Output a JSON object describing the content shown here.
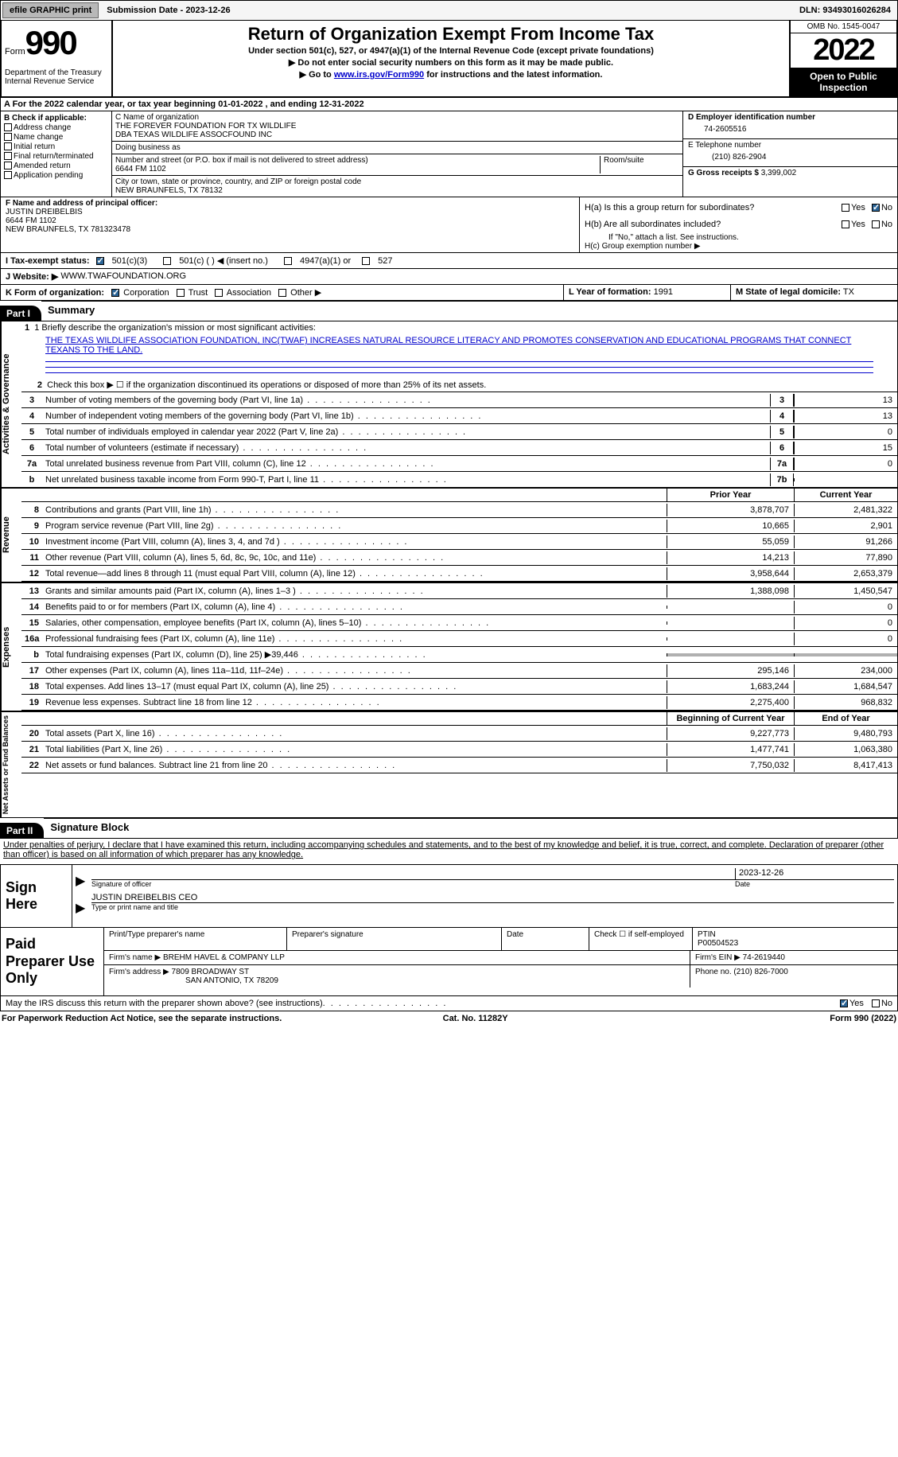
{
  "top": {
    "efile": "efile GRAPHIC print",
    "submission": "Submission Date - 2023-12-26",
    "dln": "DLN: 93493016026284"
  },
  "header": {
    "form": "Form",
    "number": "990",
    "dept": "Department of the Treasury Internal Revenue Service",
    "title": "Return of Organization Exempt From Income Tax",
    "sub1": "Under section 501(c), 527, or 4947(a)(1) of the Internal Revenue Code (except private foundations)",
    "sub2": "▶ Do not enter social security numbers on this form as it may be made public.",
    "sub3_pre": "▶ Go to ",
    "sub3_link": "www.irs.gov/Form990",
    "sub3_post": " for instructions and the latest information.",
    "omb": "OMB No. 1545-0047",
    "year": "2022",
    "open": "Open to Public Inspection"
  },
  "rowA": "A For the 2022 calendar year, or tax year beginning 01-01-2022    , and ending 12-31-2022",
  "B": {
    "label": "B Check if applicable:",
    "items": [
      "Address change",
      "Name change",
      "Initial return",
      "Final return/terminated",
      "Amended return",
      "Application pending"
    ]
  },
  "C": {
    "name_lbl": "C Name of organization",
    "name1": "THE FOREVER FOUNDATION FOR TX WILDLIFE",
    "name2": "DBA TEXAS WILDLIFE ASSOCFOUND INC",
    "dba_lbl": "Doing business as",
    "addr_lbl": "Number and street (or P.O. box if mail is not delivered to street address)",
    "room_lbl": "Room/suite",
    "addr": "6644 FM 1102",
    "city_lbl": "City or town, state or province, country, and ZIP or foreign postal code",
    "city": "NEW BRAUNFELS, TX  78132"
  },
  "D": {
    "ein_lbl": "D Employer identification number",
    "ein": "74-2605516",
    "tel_lbl": "E Telephone number",
    "tel": "(210) 826-2904",
    "gross_lbl": "G Gross receipts $",
    "gross": "3,399,002"
  },
  "F": {
    "lbl": "F Name and address of principal officer:",
    "name": "JUSTIN DREIBELBIS",
    "addr1": "6644 FM 1102",
    "addr2": "NEW BRAUNFELS, TX  781323478"
  },
  "H": {
    "a": "H(a)  Is this a group return for subordinates?",
    "b": "H(b)  Are all subordinates included?",
    "bnote": "If \"No,\" attach a list. See instructions.",
    "c": "H(c)  Group exemption number ▶",
    "yes": "Yes",
    "no": "No"
  },
  "I": {
    "lbl": "I   Tax-exempt status:",
    "o1": "501(c)(3)",
    "o2": "501(c) (  ) ◀ (insert no.)",
    "o3": "4947(a)(1) or",
    "o4": "527"
  },
  "J": {
    "lbl": "J   Website: ▶",
    "val": "WWW.TWAFOUNDATION.ORG"
  },
  "K": {
    "lbl": "K Form of organization:",
    "o1": "Corporation",
    "o2": "Trust",
    "o3": "Association",
    "o4": "Other ▶"
  },
  "L": {
    "lbl": "L Year of formation:",
    "val": "1991"
  },
  "M": {
    "lbl": "M State of legal domicile:",
    "val": "TX"
  },
  "parts": {
    "p1": "Part I",
    "p1_title": "Summary",
    "p2": "Part II",
    "p2_title": "Signature Block"
  },
  "summary": {
    "brief_lbl": "1   Briefly describe the organization's mission or most significant activities:",
    "mission": "THE TEXAS WILDLIFE ASSOCIATION FOUNDATION, INC(TWAF) INCREASES NATURAL RESOURCE LITERACY AND PROMOTES CONSERVATION AND EDUCATIONAL PROGRAMS THAT CONNECT TEXANS TO THE LAND.",
    "line2": "Check this box ▶ ☐  if the organization discontinued its operations or disposed of more than 25% of its net assets.",
    "tabs": {
      "act": "Activities & Governance",
      "rev": "Revenue",
      "exp": "Expenses",
      "net": "Net Assets or Fund Balances"
    },
    "rows_gov": [
      {
        "n": "3",
        "t": "Number of voting members of the governing body (Part VI, line 1a)",
        "box": "3",
        "v": "13"
      },
      {
        "n": "4",
        "t": "Number of independent voting members of the governing body (Part VI, line 1b)",
        "box": "4",
        "v": "13"
      },
      {
        "n": "5",
        "t": "Total number of individuals employed in calendar year 2022 (Part V, line 2a)",
        "box": "5",
        "v": "0"
      },
      {
        "n": "6",
        "t": "Total number of volunteers (estimate if necessary)",
        "box": "6",
        "v": "15"
      },
      {
        "n": "7a",
        "t": "Total unrelated business revenue from Part VIII, column (C), line 12",
        "box": "7a",
        "v": "0"
      },
      {
        "n": "b",
        "t": "Net unrelated business taxable income from Form 990-T, Part I, line 11",
        "box": "7b",
        "v": ""
      }
    ],
    "hdr_prior": "Prior Year",
    "hdr_curr": "Current Year",
    "rows_rev": [
      {
        "n": "8",
        "t": "Contributions and grants (Part VIII, line 1h)",
        "pv": "3,878,707",
        "cv": "2,481,322"
      },
      {
        "n": "9",
        "t": "Program service revenue (Part VIII, line 2g)",
        "pv": "10,665",
        "cv": "2,901"
      },
      {
        "n": "10",
        "t": "Investment income (Part VIII, column (A), lines 3, 4, and 7d )",
        "pv": "55,059",
        "cv": "91,266"
      },
      {
        "n": "11",
        "t": "Other revenue (Part VIII, column (A), lines 5, 6d, 8c, 9c, 10c, and 11e)",
        "pv": "14,213",
        "cv": "77,890"
      },
      {
        "n": "12",
        "t": "Total revenue—add lines 8 through 11 (must equal Part VIII, column (A), line 12)",
        "pv": "3,958,644",
        "cv": "2,653,379"
      }
    ],
    "rows_exp": [
      {
        "n": "13",
        "t": "Grants and similar amounts paid (Part IX, column (A), lines 1–3 )",
        "pv": "1,388,098",
        "cv": "1,450,547"
      },
      {
        "n": "14",
        "t": "Benefits paid to or for members (Part IX, column (A), line 4)",
        "pv": "",
        "cv": "0"
      },
      {
        "n": "15",
        "t": "Salaries, other compensation, employee benefits (Part IX, column (A), lines 5–10)",
        "pv": "",
        "cv": "0"
      },
      {
        "n": "16a",
        "t": "Professional fundraising fees (Part IX, column (A), line 11e)",
        "pv": "",
        "cv": "0"
      },
      {
        "n": "b",
        "t": "Total fundraising expenses (Part IX, column (D), line 25) ▶39,446",
        "pv": "gray",
        "cv": "gray"
      },
      {
        "n": "17",
        "t": "Other expenses (Part IX, column (A), lines 11a–11d, 11f–24e)",
        "pv": "295,146",
        "cv": "234,000"
      },
      {
        "n": "18",
        "t": "Total expenses. Add lines 13–17 (must equal Part IX, column (A), line 25)",
        "pv": "1,683,244",
        "cv": "1,684,547"
      },
      {
        "n": "19",
        "t": "Revenue less expenses. Subtract line 18 from line 12",
        "pv": "2,275,400",
        "cv": "968,832"
      }
    ],
    "hdr_beg": "Beginning of Current Year",
    "hdr_end": "End of Year",
    "rows_net": [
      {
        "n": "20",
        "t": "Total assets (Part X, line 16)",
        "pv": "9,227,773",
        "cv": "9,480,793"
      },
      {
        "n": "21",
        "t": "Total liabilities (Part X, line 26)",
        "pv": "1,477,741",
        "cv": "1,063,380"
      },
      {
        "n": "22",
        "t": "Net assets or fund balances. Subtract line 21 from line 20",
        "pv": "7,750,032",
        "cv": "8,417,413"
      }
    ]
  },
  "declare": "Under penalties of perjury, I declare that I have examined this return, including accompanying schedules and statements, and to the best of my knowledge and belief, it is true, correct, and complete. Declaration of preparer (other than officer) is based on all information of which preparer has any knowledge.",
  "sign": {
    "here": "Sign Here",
    "sig_lbl": "Signature of officer",
    "date_lbl": "Date",
    "date": "2023-12-26",
    "name": "JUSTIN DREIBELBIS CEO",
    "type_lbl": "Type or print name and title"
  },
  "prep": {
    "lbl": "Paid Preparer Use Only",
    "r1": {
      "c1": "Print/Type preparer's name",
      "c2": "Preparer's signature",
      "c3": "Date",
      "c4": "Check ☐ if self-employed",
      "c5_lbl": "PTIN",
      "c5": "P00504523"
    },
    "r2": {
      "c1": "Firm's name    ▶",
      "c1v": "BREHM HAVEL & COMPANY LLP",
      "c2": "Firm's EIN ▶",
      "c2v": "74-2619440"
    },
    "r3": {
      "c1": "Firm's address ▶",
      "c1v": "7809 BROADWAY ST",
      "c1v2": "SAN ANTONIO, TX  78209",
      "c2": "Phone no.",
      "c2v": "(210) 826-7000"
    }
  },
  "discuss": {
    "txt": "May the IRS discuss this return with the preparer shown above? (see instructions)",
    "yes": "Yes",
    "no": "No"
  },
  "footer": {
    "l": "For Paperwork Reduction Act Notice, see the separate instructions.",
    "m": "Cat. No. 11282Y",
    "r": "Form 990 (2022)"
  }
}
